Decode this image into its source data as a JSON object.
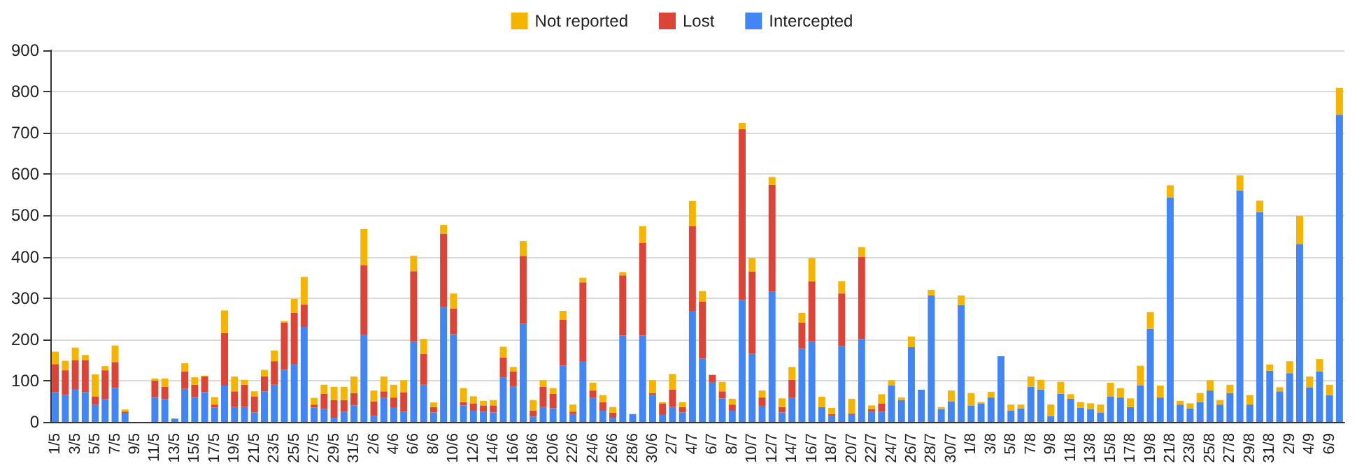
{
  "chart_data": {
    "type": "bar",
    "stacked": true,
    "legend": "top",
    "grid": true,
    "ylim": [
      0,
      900
    ],
    "yticks": [
      0,
      100,
      200,
      300,
      400,
      500,
      600,
      700,
      800,
      900
    ],
    "categories": [
      "1/5",
      null,
      "3/5",
      null,
      "5/5",
      null,
      "7/5",
      null,
      "9/5",
      null,
      "11/5",
      null,
      "13/5",
      null,
      "15/5",
      null,
      "17/5",
      null,
      "19/5",
      null,
      "21/5",
      null,
      "23/5",
      null,
      "25/5",
      null,
      "27/5",
      null,
      "29/5",
      null,
      "31/5",
      null,
      "2/6",
      null,
      "4/6",
      null,
      "6/6",
      null,
      "8/6",
      null,
      "10/6",
      null,
      "12/6",
      null,
      "14/6",
      null,
      "16/6",
      null,
      "18/6",
      null,
      "20/6",
      null,
      "22/6",
      null,
      "24/6",
      null,
      "26/6",
      null,
      "28/6",
      null,
      "30/6",
      null,
      "2/7",
      null,
      "4/7",
      null,
      "6/7",
      null,
      "8/7",
      null,
      "10/7",
      null,
      "12/7",
      null,
      "14/7",
      null,
      "16/7",
      null,
      "18/7",
      null,
      "20/7",
      null,
      "22/7",
      null,
      "24/7",
      null,
      "26/7",
      null,
      "28/7",
      null,
      "30/7",
      null,
      "1/8",
      null,
      "3/8",
      null,
      "5/8",
      null,
      "7/8",
      null,
      "9/8",
      null,
      "11/8",
      null,
      "13/8",
      null,
      "15/8",
      null,
      "17/8",
      null,
      "19/8",
      null,
      "21/8",
      null,
      "23/8",
      null,
      "25/8",
      null,
      "27/8",
      null,
      "29/8",
      null,
      "31/8",
      null,
      "2/9",
      null,
      "4/9",
      null,
      "6/9",
      null
    ],
    "series": [
      {
        "name": "Intercepted",
        "color": "#4285f4",
        "values": [
          72,
          65,
          78,
          72,
          42,
          55,
          82,
          22,
          0,
          0,
          60,
          55,
          8,
          80,
          60,
          72,
          35,
          88,
          36,
          36,
          23,
          74,
          90,
          126,
          139,
          230,
          35,
          31,
          10,
          25,
          40,
          210,
          14,
          59,
          34,
          25,
          195,
          90,
          23,
          278,
          212,
          40,
          27,
          25,
          23,
          108,
          85,
          238,
          13,
          36,
          33,
          136,
          19,
          147,
          59,
          27,
          10,
          209,
          19,
          209,
          65,
          17,
          36,
          23,
          269,
          153,
          95,
          57,
          27,
          295,
          165,
          39,
          315,
          23,
          59,
          178,
          195,
          34,
          14,
          184,
          17,
          201,
          25,
          25,
          88,
          53,
          181,
          78,
          306,
          31,
          50,
          283,
          40,
          44,
          59,
          159,
          27,
          33,
          85,
          78,
          14,
          68,
          56,
          34,
          31,
          23,
          62,
          59,
          36,
          88,
          226,
          59,
          544,
          42,
          33,
          48,
          76,
          42,
          70,
          561,
          42,
          508,
          124,
          74,
          118,
          431,
          84,
          122,
          65,
          744
        ]
      },
      {
        "name": "Lost",
        "color": "#db4437",
        "values": [
          68,
          60,
          72,
          78,
          20,
          70,
          63,
          3,
          0,
          0,
          40,
          30,
          0,
          42,
          30,
          38,
          7,
          127,
          38,
          54,
          39,
          36,
          57,
          115,
          125,
          54,
          7,
          37,
          43,
          28,
          30,
          170,
          36,
          15,
          25,
          47,
          170,
          75,
          13,
          178,
          63,
          8,
          18,
          15,
          17,
          48,
          37,
          164,
          14,
          49,
          35,
          111,
          6,
          191,
          17,
          21,
          12,
          146,
          0,
          225,
          5,
          28,
          42,
          13,
          205,
          139,
          19,
          17,
          15,
          414,
          199,
          20,
          259,
          13,
          43,
          63,
          145,
          2,
          5,
          127,
          3,
          199,
          6,
          19,
          0,
          0,
          0,
          0,
          0,
          0,
          0,
          0,
          0,
          0,
          0,
          0,
          0,
          0,
          0,
          0,
          0,
          0,
          0,
          0,
          0,
          0,
          0,
          0,
          0,
          0,
          0,
          0,
          0,
          0,
          0,
          0,
          0,
          0,
          0,
          0,
          0,
          0,
          0,
          0,
          0,
          0,
          0,
          0,
          0,
          0
        ]
      },
      {
        "name": "Not reported",
        "color": "#f4b400",
        "values": [
          30,
          23,
          30,
          12,
          53,
          10,
          40,
          5,
          0,
          0,
          5,
          20,
          0,
          20,
          18,
          2,
          18,
          55,
          36,
          12,
          12,
          16,
          26,
          3,
          34,
          67,
          16,
          22,
          32,
          32,
          40,
          87,
          26,
          36,
          31,
          29,
          37,
          36,
          11,
          21,
          36,
          34,
          17,
          11,
          13,
          26,
          11,
          36,
          26,
          16,
          14,
          22,
          17,
          11,
          19,
          17,
          14,
          8,
          0,
          40,
          31,
          3,
          38,
          12,
          61,
          25,
          0,
          23,
          14,
          15,
          33,
          17,
          19,
          21,
          31,
          23,
          57,
          25,
          15,
          30,
          36,
          23,
          9,
          23,
          13,
          6,
          26,
          0,
          14,
          5,
          26,
          23,
          30,
          4,
          14,
          0,
          15,
          9,
          25,
          24,
          28,
          29,
          11,
          14,
          14,
          19,
          33,
          23,
          21,
          48,
          40,
          29,
          29,
          9,
          12,
          22,
          25,
          11,
          20,
          36,
          23,
          28,
          15,
          10,
          29,
          68,
          26,
          30,
          25,
          65
        ]
      }
    ]
  }
}
